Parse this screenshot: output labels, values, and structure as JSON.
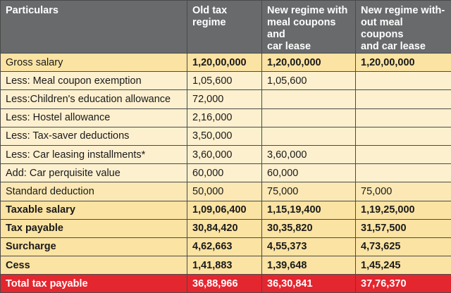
{
  "table": {
    "headers": [
      "Particulars",
      "Old tax\nregime",
      "New regime with\nmeal coupons and\ncar lease",
      "New regime with-\nout meal coupons\nand car lease"
    ],
    "rows": [
      {
        "cells": [
          "Gross salary",
          "1,20,00,000",
          "1,20,00,000",
          "1,20,00,000"
        ]
      },
      {
        "cells": [
          "Less: Meal coupon exemption",
          "1,05,600",
          "1,05,600",
          ""
        ]
      },
      {
        "cells": [
          "Less:Children's education allowance",
          "72,000",
          "",
          ""
        ]
      },
      {
        "cells": [
          "Less: Hostel allowance",
          "2,16,000",
          "",
          ""
        ]
      },
      {
        "cells": [
          "Less: Tax-saver deductions",
          "3,50,000",
          "",
          ""
        ]
      },
      {
        "cells": [
          "Less: Car leasing installments*",
          "3,60,000",
          "3,60,000",
          ""
        ]
      },
      {
        "cells": [
          "Add: Car perquisite value",
          "60,000",
          "60,000",
          ""
        ]
      },
      {
        "cells": [
          "Standard deduction",
          "50,000",
          "75,000",
          "75,000"
        ]
      },
      {
        "cells": [
          "Taxable salary",
          "1,09,06,400",
          "1,15,19,400",
          "1,19,25,000"
        ]
      },
      {
        "cells": [
          "Tax payable",
          "30,84,420",
          "30,35,820",
          "31,57,500"
        ]
      },
      {
        "cells": [
          "Surcharge",
          "4,62,663",
          "4,55,373",
          "4,73,625"
        ]
      },
      {
        "cells": [
          "Cess",
          "1,41,883",
          "1,39,648",
          "1,45,245"
        ]
      },
      {
        "cells": [
          "Total tax payable",
          "36,88,966",
          "36,30,841",
          "37,76,370"
        ]
      }
    ]
  },
  "colors": {
    "header_bg": "#686a6c",
    "row_bg": "#fdf0cf",
    "bold_row_bg": "#fbe3a3",
    "total_bg": "#e4262f"
  }
}
